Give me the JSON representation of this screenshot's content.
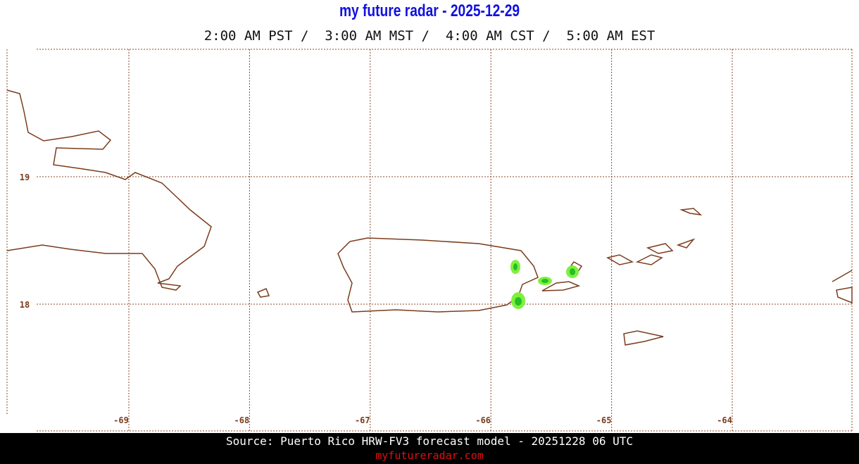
{
  "header": {
    "title": "my future radar - 2025-12-29",
    "times": "2:00 AM PST /  3:00 AM MST /  4:00 AM CST /  5:00 AM EST"
  },
  "map": {
    "lon_labels": [
      "-69",
      "-68",
      "-67",
      "-66",
      "-65",
      "-64"
    ],
    "lat_labels": [
      "19",
      "18"
    ]
  },
  "footer": {
    "source": "Source: Puerto Rico HRW-FV3 forecast model - 20251228 06 UTC",
    "site": "myfutureradar.com"
  }
}
